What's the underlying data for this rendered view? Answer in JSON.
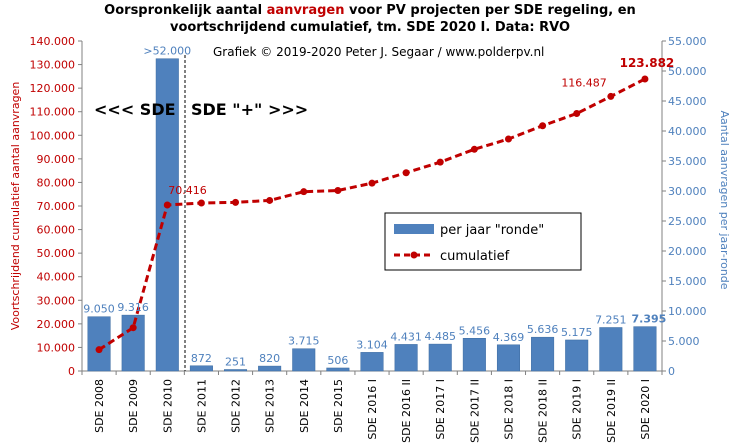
{
  "chart_data": {
    "type": "bar+line",
    "title_parts": [
      "Oorspronkelijk  aantal ",
      "aanvragen",
      " voor PV projecten per SDE regeling, en"
    ],
    "title_line2": "voortschrijdend  cumulatief, tm. SDE 2020 I. Data: RVO",
    "credit": "Grafiek  © 2019-2020  Peter  J. Segaar / www.polderpv.nl",
    "era_left": "<<< SDE",
    "era_right": "SDE \"+\" >>>",
    "ylabel_left": "Voortschrijdend cumulatief aantal aanvragen",
    "ylabel_right": "Aantal aanvragen per jaar-ronde",
    "ylim_left": [
      0,
      140000
    ],
    "ylim_right": [
      0,
      55000
    ],
    "left_ticks": [
      "0",
      "10.000",
      "20.000",
      "30.000",
      "40.000",
      "50.000",
      "60.000",
      "70.000",
      "80.000",
      "90.000",
      "100.000",
      "110.000",
      "120.000",
      "130.000",
      "140.000"
    ],
    "right_ticks": [
      "0",
      "5.000",
      "10.000",
      "15.000",
      "20.000",
      "25.000",
      "30.000",
      "35.000",
      "40.000",
      "45.000",
      "50.000",
      "55.000"
    ],
    "categories": [
      "SDE 2008",
      "SDE 2009",
      "SDE 2010",
      "SDE 2011",
      "SDE 2012",
      "SDE 2013",
      "SDE 2014",
      "SDE 2015",
      "SDE 2016 I",
      "SDE 2016 II",
      "SDE 2017 I",
      "SDE 2017 II",
      "SDE 2018 I",
      "SDE 2018 II",
      "SDE 2019 I",
      "SDE 2019 II",
      "SDE 2020 I"
    ],
    "series": [
      {
        "name": "per jaar \"ronde\"",
        "axis": "right",
        "values": [
          9050,
          9316,
          52050,
          872,
          251,
          820,
          3715,
          506,
          3104,
          4431,
          4485,
          5456,
          4369,
          5636,
          5175,
          7251,
          7395
        ],
        "labels": [
          "9.050",
          "9.316",
          ">52.000",
          "872",
          "251",
          "820",
          "3.715",
          "506",
          "3.104",
          "4.431",
          "4.485",
          "5.456",
          "4.369",
          "5.636",
          "5.175",
          "7.251",
          "7.395"
        ],
        "color": "#4f81bd"
      },
      {
        "name": "cumulatief",
        "axis": "left",
        "values": [
          9050,
          18366,
          70416,
          71288,
          71539,
          72359,
          76074,
          76580,
          79684,
          84115,
          88600,
          94056,
          98425,
          104061,
          109236,
          116487,
          123882
        ],
        "labels": [
          "70.416",
          "116.487",
          "123.882"
        ],
        "color": "#c00000"
      }
    ],
    "legend_position": "center-right",
    "grid": false
  }
}
